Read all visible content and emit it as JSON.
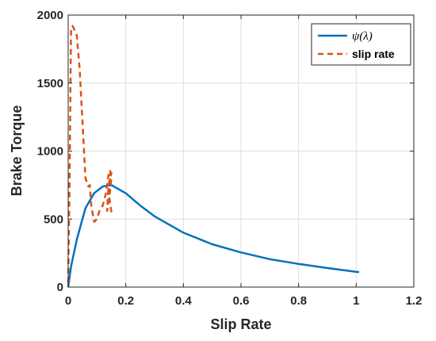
{
  "chart_data": {
    "type": "line",
    "xlabel": "Slip Rate",
    "ylabel": "Brake Torque",
    "xlim": [
      0,
      1.2
    ],
    "ylim": [
      0,
      2000
    ],
    "x_ticks": [
      0,
      0.2,
      0.4,
      0.6,
      0.8,
      1,
      1.2
    ],
    "x_tick_labels": [
      "0",
      "0.2",
      "0.4",
      "0.6",
      "0.8",
      "1",
      "1.2"
    ],
    "y_ticks": [
      0,
      500,
      1000,
      1500,
      2000
    ],
    "y_tick_labels": [
      "0",
      "500",
      "1000",
      "1500",
      "2000"
    ],
    "grid": true,
    "legend_position": "top-right",
    "series": [
      {
        "name": "ψ(λ)",
        "color": "#0072bd",
        "style": "solid",
        "x": [
          0,
          0.01,
          0.03,
          0.06,
          0.09,
          0.12,
          0.15,
          0.2,
          0.25,
          0.3,
          0.4,
          0.5,
          0.6,
          0.7,
          0.8,
          0.9,
          1.0,
          1.01
        ],
        "y": [
          0,
          150,
          350,
          580,
          690,
          740,
          750,
          690,
          600,
          520,
          400,
          315,
          255,
          205,
          170,
          140,
          112,
          110
        ]
      },
      {
        "name": "slip rate",
        "color": "#d95319",
        "style": "dashed",
        "x": [
          0,
          0.005,
          0.01,
          0.015,
          0.02,
          0.03,
          0.04,
          0.05,
          0.06,
          0.07,
          0.075,
          0.08,
          0.09,
          0.1,
          0.11,
          0.12,
          0.13,
          0.14,
          0.145,
          0.15,
          0.145,
          0.14,
          0.135,
          0.14,
          0.15,
          0.145,
          0.14,
          0.15
        ],
        "y": [
          30,
          800,
          1900,
          1920,
          1900,
          1850,
          1600,
          1200,
          800,
          740,
          750,
          600,
          480,
          500,
          570,
          600,
          680,
          820,
          860,
          800,
          700,
          620,
          560,
          750,
          840,
          780,
          700,
          550
        ]
      }
    ]
  }
}
